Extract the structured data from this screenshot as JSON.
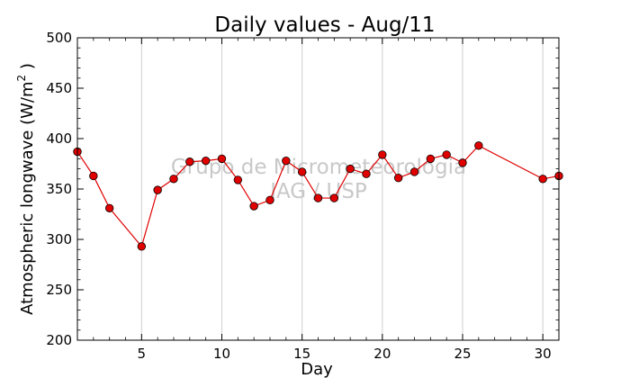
{
  "chart_data": {
    "type": "line",
    "title": "Daily values - Aug/11",
    "xlabel": "Day",
    "ylabel": "Atmospheric longwave (W/m",
    "ylabel_sup": "2",
    "ylabel_close": " )",
    "xlim": [
      1,
      31
    ],
    "ylim": [
      200,
      500
    ],
    "x_ticks": [
      5,
      10,
      15,
      20,
      25,
      30
    ],
    "y_ticks": [
      200,
      250,
      300,
      350,
      400,
      450,
      500
    ],
    "grid": "vertical",
    "series": [
      {
        "x": [
          1,
          2,
          3,
          5,
          6,
          7,
          8,
          9,
          10,
          11,
          12,
          13,
          14,
          15,
          16,
          17,
          18,
          19,
          20,
          21,
          22,
          23,
          24,
          25,
          26,
          30,
          31
        ],
        "y": [
          387,
          363,
          331,
          293,
          349,
          360,
          377,
          378,
          380,
          359,
          333,
          339,
          378,
          367,
          341,
          341,
          370,
          365,
          384,
          361,
          367,
          380,
          384,
          376,
          393,
          360,
          363
        ],
        "color": "#e00000",
        "marker_color": "#e00000"
      }
    ],
    "watermark": [
      "Grupo de Micrometeorologia",
      "IAG / USP"
    ]
  }
}
